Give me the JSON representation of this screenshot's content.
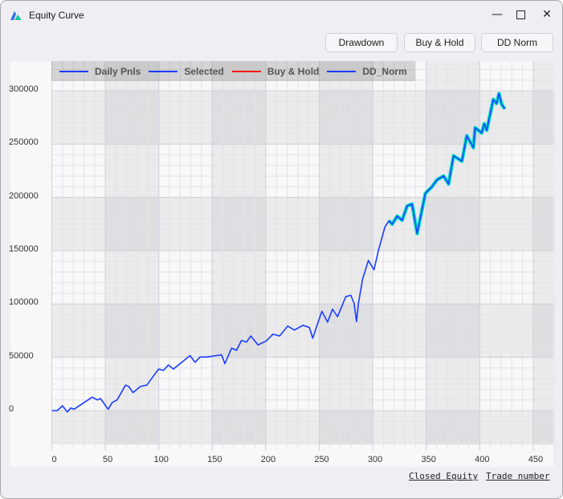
{
  "window": {
    "title": "Equity Curve",
    "minimize_icon": "minimize-icon",
    "maximize_icon": "maximize-icon",
    "close_icon": "close-icon"
  },
  "toolbar": {
    "drawdown_label": "Drawdown",
    "buy_hold_label": "Buy & Hold",
    "dd_norm_label": "DD Norm"
  },
  "axis_titles": {
    "y": "Closed Equity",
    "x": "Trade number"
  },
  "chart_data": {
    "type": "line",
    "legend": [
      {
        "name": "Daily Pnls",
        "color": "#1a3cff"
      },
      {
        "name": "Selected",
        "color": "#1a3cff"
      },
      {
        "name": "Buy & Hold",
        "color": "#ff1010"
      },
      {
        "name": "DD_Norm",
        "color": "#1a3cff"
      }
    ],
    "legend_position": "top-left",
    "xlim": [
      0,
      470
    ],
    "ylim": [
      -32000,
      328000
    ],
    "xticks": [
      0,
      50,
      100,
      150,
      200,
      250,
      300,
      350,
      400,
      450
    ],
    "yticks": [
      0,
      50000,
      100000,
      150000,
      200000,
      250000,
      300000
    ],
    "ytick_labels": [
      "0",
      "50000",
      "100000",
      "150000",
      "200000",
      "250000",
      "300000"
    ],
    "xtick_labels": [
      "0",
      "50",
      "100",
      "150",
      "200",
      "250",
      "300",
      "350",
      "400",
      "450"
    ],
    "grid": true,
    "selection_color": "#00e0c8",
    "selected_from": 315,
    "series": [
      {
        "name": "Daily Pnls",
        "x": [
          0,
          5,
          10,
          14.6,
          17.7,
          20.8,
          30,
          37.8,
          42.5,
          45.5,
          52.7,
          56.4,
          61,
          69,
          71.9,
          75.9,
          82.7,
          88.9,
          99.8,
          104.4,
          109,
          113.7,
          119.9,
          129.2,
          133.9,
          138.5,
          144.7,
          154,
          158.7,
          161.8,
          168,
          172.7,
          177.3,
          182,
          186,
          192.8,
          200.5,
          206.7,
          212.9,
          220.6,
          226.8,
          234.6,
          240.8,
          243.9,
          248.5,
          252.5,
          257.8,
          262.4,
          267.1,
          274.8,
          279.5,
          282.6,
          284.8,
          286.6,
          290.4,
          295.9,
          301.2,
          305.2,
          311.4,
          315.1,
          318.2,
          322.8,
          327.5,
          332.1,
          336.8,
          341.5,
          349.2,
          355.4,
          360,
          366.2,
          370.9,
          375.5,
          383.3,
          387.9,
          394.1,
          395.7,
          401.9,
          404.3,
          406.5,
          412.7,
          415.8,
          418,
          420.5,
          423.5
        ],
        "y": [
          0,
          0,
          4500,
          -1300,
          2500,
          1300,
          7500,
          12600,
          10000,
          11300,
          1300,
          7500,
          10000,
          24000,
          22600,
          16900,
          22600,
          24000,
          39000,
          37700,
          42800,
          39000,
          44000,
          51600,
          45300,
          50300,
          50300,
          51600,
          52300,
          44000,
          58600,
          56600,
          65900,
          64200,
          70000,
          61600,
          65400,
          71700,
          70000,
          79300,
          75500,
          80000,
          78000,
          67900,
          81800,
          93100,
          83000,
          95100,
          88100,
          106900,
          108200,
          100600,
          83500,
          100600,
          122800,
          140900,
          132100,
          149700,
          172300,
          178100,
          174900,
          182400,
          178600,
          192000,
          193700,
          166100,
          203800,
          210100,
          216400,
          220100,
          212600,
          239000,
          234000,
          257900,
          246600,
          265400,
          260400,
          269200,
          263000,
          291900,
          288100,
          297400,
          287300,
          283000
        ]
      }
    ]
  }
}
